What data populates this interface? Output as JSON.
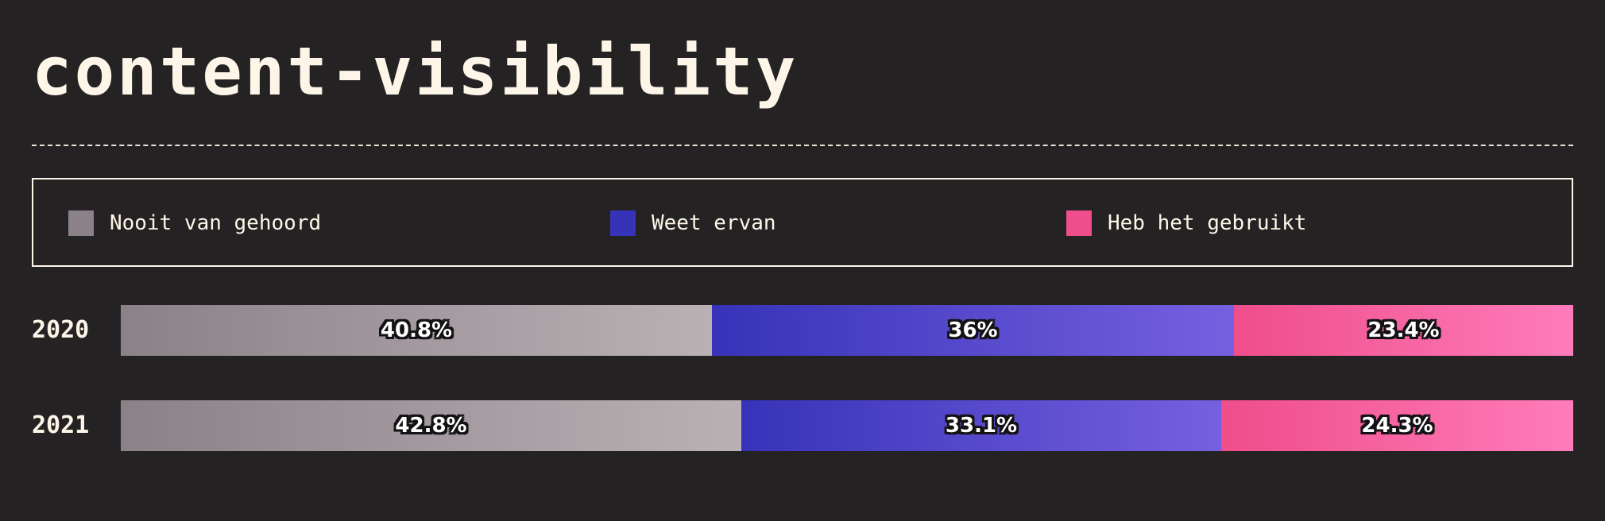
{
  "title": "content-visibility",
  "chart_data": {
    "type": "bar",
    "orientation": "horizontal",
    "stacked": true,
    "categories": [
      "2020",
      "2021"
    ],
    "series": [
      {
        "name": "Nooit van gehoord",
        "values": [
          40.8,
          42.8
        ],
        "labels": [
          "40.8%",
          "42.8%"
        ],
        "color": "#8a8288",
        "color_end": "#b9b1b4"
      },
      {
        "name": "Weet ervan",
        "values": [
          36,
          33.1
        ],
        "labels": [
          "36%",
          "33.1%"
        ],
        "color": "#3733b8",
        "color_end": "#7660e0"
      },
      {
        "name": "Heb het gebruikt",
        "values": [
          23.4,
          24.3
        ],
        "labels": [
          "23.4%",
          "24.3%"
        ],
        "color": "#ef4d8b",
        "color_end": "#ff7cba"
      }
    ],
    "xlim": [
      0,
      100
    ],
    "legend_position": "top"
  },
  "colors": {
    "background": "#252224",
    "text": "#fdf6e8"
  }
}
